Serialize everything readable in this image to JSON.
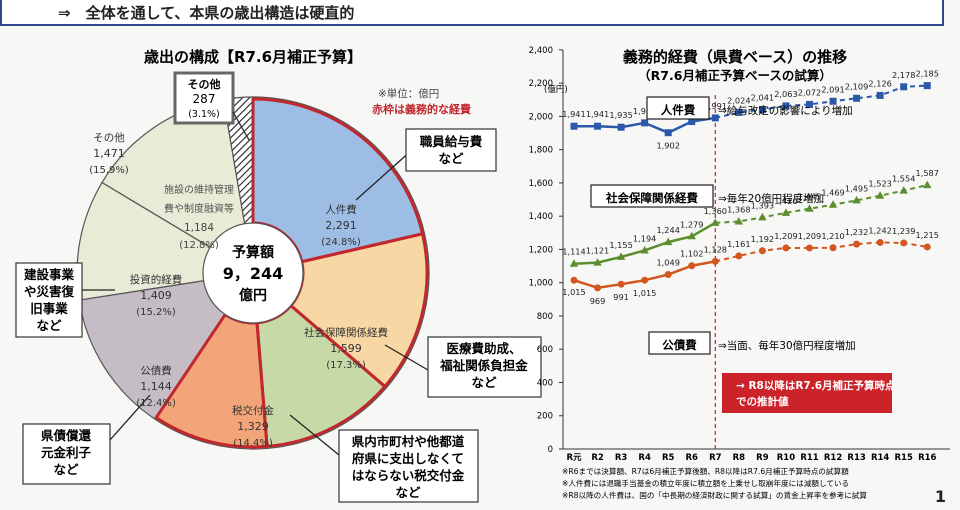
{
  "banner": "⇒　全体を通して、本県の歳出構造は硬直的",
  "page_number": "1",
  "chart_data": [
    {
      "type": "pie",
      "title": "歳出の構成【R7.6月補正予算】",
      "unit_note": "※単位：億円",
      "legend_note": "赤枠は義務的な経費",
      "center": {
        "label": "予算額",
        "value": "9，244",
        "unit": "億円"
      },
      "slices": [
        {
          "name": "人件費",
          "value": 2291,
          "value_text": "2,291",
          "pct": "(24.8%)",
          "color": "#9dbde5",
          "obligatory": true,
          "hatch": false
        },
        {
          "name": "社会保障関係経費",
          "value": 1599,
          "value_text": "1,599",
          "pct": "(17.3%)",
          "color": "#f7d8a5",
          "obligatory": true,
          "hatch": false
        },
        {
          "name": "税交付金",
          "value": 1329,
          "value_text": "1,329",
          "pct": "(14.4%)",
          "color": "#c6d9a6",
          "obligatory": true,
          "hatch": false
        },
        {
          "name": "公債費",
          "value": 1144,
          "value_text": "1,144",
          "pct": "(12.4%)",
          "color": "#f3a57a",
          "obligatory": true,
          "hatch": false
        },
        {
          "name": "投資的経費",
          "value": 1409,
          "value_text": "1,409",
          "pct": "(15.2%)",
          "color": "#c4bdc6",
          "obligatory": false,
          "hatch": false
        },
        {
          "name": "施設の維持管理費や制度融資等",
          "value": 1184,
          "value_text": "1,184",
          "pct": "(12.8%)",
          "color": "#e8ebd5",
          "obligatory": false,
          "hatch": false
        },
        {
          "name": "その他",
          "value": 1471,
          "value_text": "1,471",
          "pct": "(15.9%)",
          "color": "#e8ebd5",
          "obligatory": false,
          "hatch": false
        },
        {
          "name": "その他",
          "value": 287,
          "value_text": "287",
          "pct": "(3.1%)",
          "color": "#ffffff",
          "obligatory": false,
          "hatch": true
        }
      ],
      "callouts": [
        "職員給与費\nなど",
        "医療費助成、\n福祉関係負担金\nなど",
        "県内市町村や他都道\n府県に支出しなくて\nはならない税交付金\nなど",
        "県債償還\n元金利子\nなど",
        "建設事業\nや災害復\n旧事業\nなど"
      ]
    },
    {
      "type": "line",
      "title": "義務的経費（県費ベース）の推移",
      "subtitle": "（R7.6月補正予算ベースの試算）",
      "y_unit": "(億円)",
      "ylim": [
        0,
        2400
      ],
      "yticks": [
        0,
        200,
        400,
        600,
        800,
        1000,
        1200,
        1400,
        1600,
        1800,
        2000,
        2200,
        2400
      ],
      "ytick_labels": [
        "0",
        "200",
        "400",
        "600",
        "800",
        "1,000",
        "1,200",
        "1,400",
        "1,600",
        "1,800",
        "2,000",
        "2,200",
        "2,400"
      ],
      "categories": [
        "R元",
        "R2",
        "R3",
        "R4",
        "R5",
        "R6",
        "R7",
        "R8",
        "R9",
        "R10",
        "R11",
        "R12",
        "R13",
        "R14",
        "R15",
        "R16"
      ],
      "actual_until_index": 6,
      "series": [
        {
          "name": "人件費",
          "color": "#2b58a8",
          "marker": "square",
          "values": [
            1941,
            1941,
            1935,
            1961,
            1902,
            1969,
            1991,
            2024,
            2041,
            2063,
            2072,
            2091,
            2109,
            2126,
            2178,
            2185
          ],
          "labels": [
            "1,941",
            "1,941",
            "1,935",
            "1,961",
            "1,902",
            "1,969",
            "1,991",
            "2,024",
            "2,041",
            "2,063",
            "2,072",
            "2,091",
            "2,109",
            "2,126",
            "2,178",
            "2,185"
          ],
          "note": "⇒給与改定の影響により増加"
        },
        {
          "name": "社会保障関係経費",
          "color": "#5c8d2e",
          "marker": "triangle",
          "values": [
            1114,
            1121,
            1155,
            1194,
            1244,
            1279,
            1360,
            1368,
            1393,
            1420,
            1445,
            1469,
            1495,
            1523,
            1554,
            1587
          ],
          "labels": [
            "1,114",
            "1,121",
            "1,155",
            "1,194",
            "1,244",
            "1,279",
            "1,360",
            "1,368",
            "1,393",
            "1,420",
            "1,445",
            "1,469",
            "1,495",
            "1,523",
            "1,554",
            "1,587"
          ],
          "note": "⇒毎年20億円程度増加"
        },
        {
          "name": "公債費",
          "color": "#d2561f",
          "marker": "circle",
          "values": [
            1015,
            969,
            991,
            1015,
            1049,
            1102,
            1128,
            1161,
            1192,
            1209,
            1209,
            1210,
            1232,
            1242,
            1239,
            1215
          ],
          "labels": [
            "1,015",
            "969",
            "991",
            "1,015",
            "1,049",
            "1,102",
            "1,128",
            "1,161",
            "1,192",
            "1,209",
            "1,209",
            "1,210",
            "1,232",
            "1,242",
            "1,239",
            "1,215"
          ],
          "note": "⇒当面、毎年30億円程度増加"
        }
      ],
      "estimate_note": "→ R8以降はR7.6月補正予算時点\nでの推計値",
      "footnotes": [
        "※R6までは決算額、R7は6月補正予算後額、R8以降はR7.6月補正予算時点の試算額",
        "※人件費には退職手当基金の積立年度に積立額を上乗せし取崩年度には減額している",
        "※R8以降の人件費は、国の「中長期の経済財政に関する試算」の賃金上昇率を参考に試算"
      ]
    }
  ]
}
